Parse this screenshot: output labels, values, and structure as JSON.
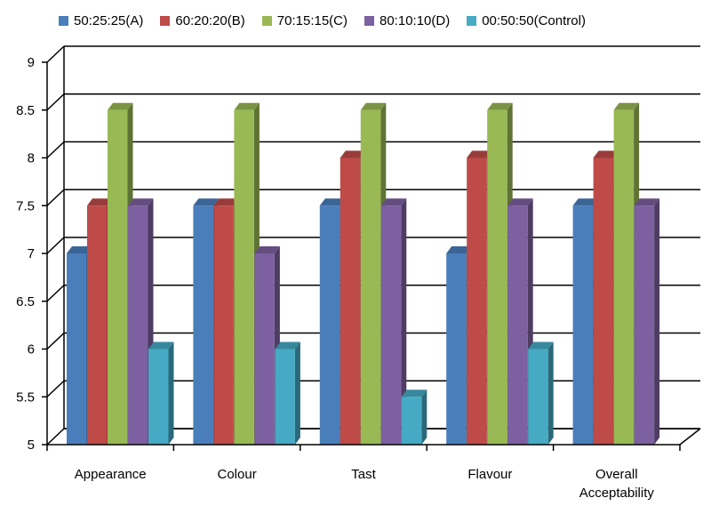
{
  "chart_data": {
    "type": "bar",
    "title": "",
    "xlabel": "",
    "ylabel": "",
    "categories": [
      "Appearance",
      "Colour",
      "Tast",
      "Flavour",
      "Overall Acceptability"
    ],
    "category_lines": [
      [
        "Appearance"
      ],
      [
        "Colour"
      ],
      [
        "Tast"
      ],
      [
        "Flavour"
      ],
      [
        "Overall",
        "Acceptability"
      ]
    ],
    "ylim": [
      5,
      9
    ],
    "yticks": [
      "5",
      "5.5",
      "6",
      "6.5",
      "7",
      "7.5",
      "8",
      "8.5",
      "9"
    ],
    "grid": true,
    "legend_position": "top",
    "series": [
      {
        "name": "50:25:25(A)",
        "color": "#4a7ebb",
        "values": [
          7,
          7.5,
          7.5,
          7,
          7.5
        ]
      },
      {
        "name": "60:20:20(B)",
        "color": "#be4b48",
        "values": [
          7.5,
          7.5,
          8,
          8,
          8
        ]
      },
      {
        "name": "70:15:15(C)",
        "color": "#98b954",
        "values": [
          8.5,
          8.5,
          8.5,
          8.5,
          8.5
        ]
      },
      {
        "name": "80:10:10(D)",
        "color": "#7d60a0",
        "values": [
          7.5,
          7,
          7.5,
          7.5,
          7.5
        ]
      },
      {
        "name": "00:50:50(Control)",
        "color": "#46aac4",
        "values": [
          6,
          6,
          5.5,
          6,
          null
        ]
      }
    ]
  }
}
